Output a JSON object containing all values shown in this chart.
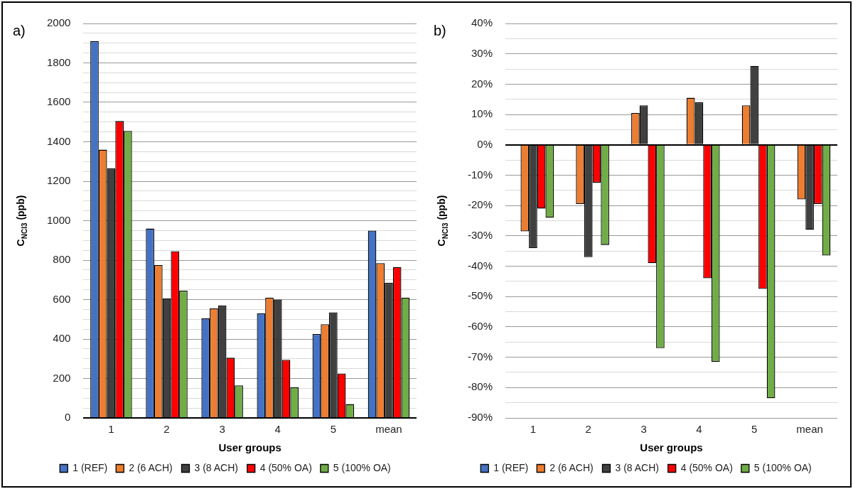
{
  "chart_data": [
    {
      "type": "bar",
      "categories": [
        "1",
        "2",
        "3",
        "4",
        "5",
        "mean"
      ],
      "xlabel": "User groups",
      "ylabel": "C$_{NCl3}$ (ppb)",
      "annotations": [
        "a)"
      ],
      "series": [
        {
          "name": "1 (REF)",
          "color": "#4472c4",
          "values": [
            1910,
            960,
            505,
            530,
            425,
            950
          ]
        },
        {
          "name": "2 (6 ACH)",
          "color": "#ed7d31",
          "values": [
            1360,
            775,
            555,
            610,
            475,
            785
          ]
        },
        {
          "name": "3 (8 ACH)",
          "color": "#404040",
          "values": [
            1265,
            605,
            570,
            600,
            535,
            685
          ]
        },
        {
          "name": "4 (50% OA)",
          "color": "#ff0000",
          "values": [
            1505,
            845,
            305,
            295,
            225,
            765
          ]
        },
        {
          "name": "5 (100% OA)",
          "color": "#70ad47",
          "values": [
            1455,
            645,
            165,
            155,
            70,
            610
          ]
        }
      ],
      "ylim": [
        0,
        2000
      ],
      "yticks": [
        0,
        {
          "value": 50,
          "label": null
        },
        {
          "value": 100,
          "label": null
        },
        {
          "value": 150,
          "label": null
        },
        200,
        {
          "value": 250,
          "label": null
        },
        {
          "value": 300,
          "label": null
        },
        {
          "value": 350,
          "label": null
        },
        400,
        {
          "value": 450,
          "label": null
        },
        {
          "value": 500,
          "label": null
        },
        {
          "value": 550,
          "label": null
        },
        600,
        {
          "value": 650,
          "label": null
        },
        {
          "value": 700,
          "label": null
        },
        {
          "value": 750,
          "label": null
        },
        800,
        {
          "value": 850,
          "label": null
        },
        {
          "value": 900,
          "label": null
        },
        {
          "value": 950,
          "label": null
        },
        1000,
        {
          "value": 1050,
          "label": null
        },
        {
          "value": 1100,
          "label": null
        },
        {
          "value": 1150,
          "label": null
        },
        1200,
        {
          "value": 1250,
          "label": null
        },
        {
          "value": 1300,
          "label": null
        },
        {
          "value": 1350,
          "label": null
        },
        1400,
        {
          "value": 1450,
          "label": null
        },
        {
          "value": 1500,
          "label": null
        },
        {
          "value": 1550,
          "label": null
        },
        1600,
        {
          "value": 1650,
          "label": null
        },
        {
          "value": 1700,
          "label": null
        },
        {
          "value": 1750,
          "label": null
        },
        1800,
        {
          "value": 1850,
          "label": null
        },
        {
          "value": 1900,
          "label": null
        },
        {
          "value": 1950,
          "label": null
        },
        2000
      ],
      "grid": "y",
      "legend": "bottom"
    },
    {
      "type": "bar",
      "categories": [
        "1",
        "2",
        "3",
        "4",
        "5",
        "mean"
      ],
      "xlabel": "User groups",
      "ylabel": "C$_{NCl3}$ (ppb)",
      "annotations": [
        "b)"
      ],
      "series": [
        {
          "name": "1 (REF)",
          "color": "#4472c4",
          "values": [
            0,
            0,
            0,
            0,
            0,
            0
          ]
        },
        {
          "name": "2 (6 ACH)",
          "color": "#ed7d31",
          "values": [
            -28.5,
            -19.5,
            10.5,
            15.5,
            13,
            -18
          ]
        },
        {
          "name": "3 (8 ACH)",
          "color": "#404040",
          "values": [
            -34,
            -37,
            13,
            14,
            26,
            -28
          ]
        },
        {
          "name": "4 (50% OA)",
          "color": "#ff0000",
          "values": [
            -21,
            -12.5,
            -39,
            -44,
            -47.5,
            -19.5
          ]
        },
        {
          "name": "5 (100% OA)",
          "color": "#70ad47",
          "values": [
            -24,
            -33,
            -67,
            -71.5,
            -83.5,
            -36.5
          ]
        }
      ],
      "ylim": [
        -90,
        40
      ],
      "yticks": [
        {
          "value": -90,
          "label": "-90%"
        },
        {
          "value": -85,
          "label": null
        },
        {
          "value": -80,
          "label": "-80%"
        },
        {
          "value": -75,
          "label": null
        },
        {
          "value": -70,
          "label": "-70%"
        },
        {
          "value": -65,
          "label": null
        },
        {
          "value": -60,
          "label": "-60%"
        },
        {
          "value": -55,
          "label": null
        },
        {
          "value": -50,
          "label": "-50%"
        },
        {
          "value": -45,
          "label": null
        },
        {
          "value": -40,
          "label": "-40%"
        },
        {
          "value": -35,
          "label": null
        },
        {
          "value": -30,
          "label": "-30%"
        },
        {
          "value": -25,
          "label": null
        },
        {
          "value": -20,
          "label": "-20%"
        },
        {
          "value": -15,
          "label": null
        },
        {
          "value": -10,
          "label": "-10%"
        },
        {
          "value": -5,
          "label": null
        },
        {
          "value": 0,
          "label": "0%"
        },
        {
          "value": 5,
          "label": null
        },
        {
          "value": 10,
          "label": "10%"
        },
        {
          "value": 15,
          "label": null
        },
        {
          "value": 20,
          "label": "20%"
        },
        {
          "value": 25,
          "label": null
        },
        {
          "value": 30,
          "label": "30%"
        },
        {
          "value": 35,
          "label": null
        },
        {
          "value": 40,
          "label": "40%"
        }
      ],
      "grid": "y",
      "legend": "bottom"
    }
  ]
}
